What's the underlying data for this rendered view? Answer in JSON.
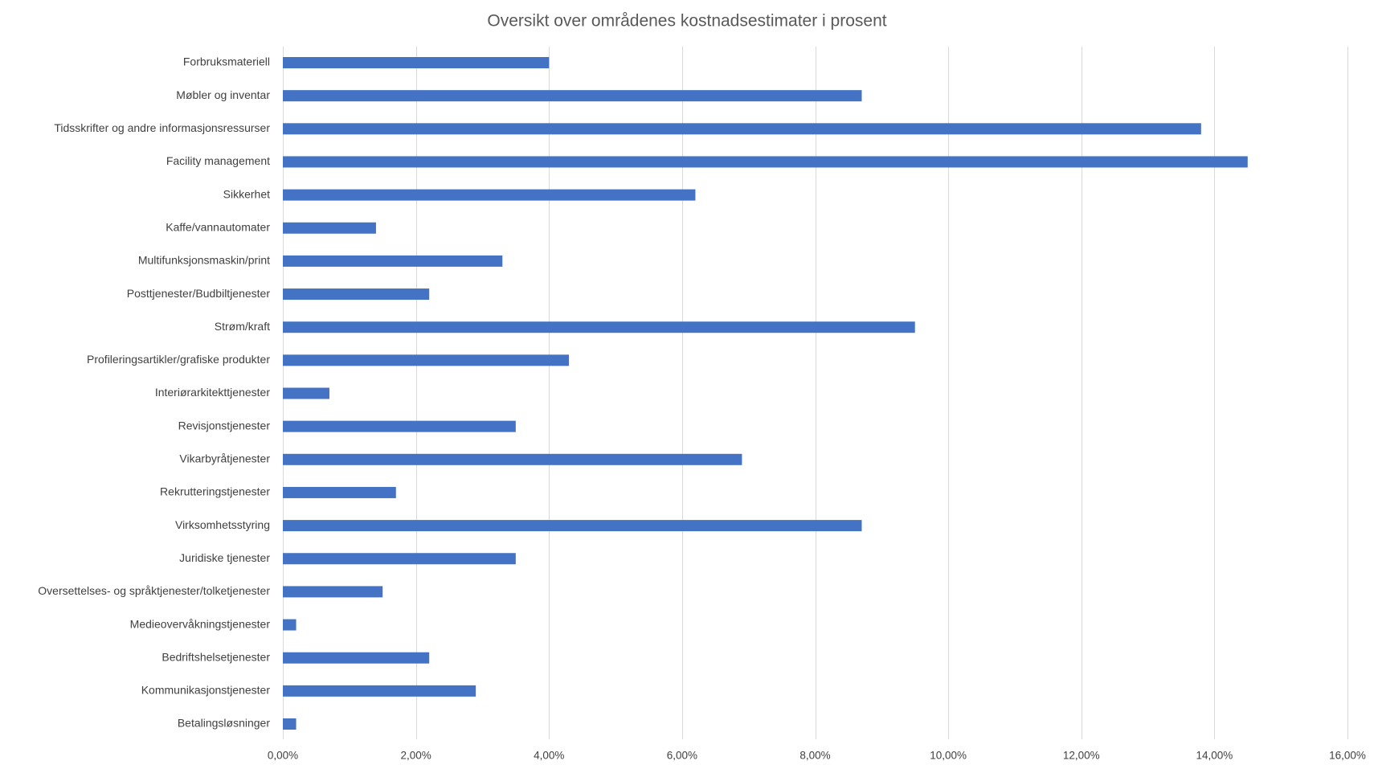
{
  "chart_data": {
    "type": "bar",
    "orientation": "horizontal",
    "title": "Oversikt over områdenes kostnadsestimater i prosent",
    "xlabel": "",
    "ylabel": "",
    "xlim": [
      0,
      16
    ],
    "x_ticks": [
      0,
      2,
      4,
      6,
      8,
      10,
      12,
      14,
      16
    ],
    "x_tick_labels": [
      "0,00%",
      "2,00%",
      "4,00%",
      "6,00%",
      "8,00%",
      "10,00%",
      "12,00%",
      "14,00%",
      "16,00%"
    ],
    "grid": true,
    "legend": "none",
    "bar_color": "#4472C4",
    "categories": [
      "Forbruksmateriell",
      "Møbler og inventar",
      "Tidsskrifter og andre informasjonsressurser",
      "Facility management",
      "Sikkerhet",
      "Kaffe/vannautomater",
      "Multifunksjonsmaskin/print",
      "Posttjenester/Budbiltjenester",
      "Strøm/kraft",
      "Profileringsartikler/grafiske produkter",
      "Interiørarkitekttjenester",
      "Revisjonstjenester",
      "Vikarbyråtjenester",
      "Rekrutteringstjenester",
      "Virksomhetsstyring",
      "Juridiske tjenester",
      "Oversettelses- og språktjenester/tolketjenester",
      "Medieovervåkningstjenester",
      "Bedriftshelsetjenester",
      "Kommunikasjonstjenester",
      "Betalingsløsninger"
    ],
    "values": [
      4.0,
      8.7,
      13.8,
      14.5,
      6.2,
      1.4,
      3.3,
      2.2,
      9.5,
      4.3,
      0.7,
      3.5,
      6.9,
      1.7,
      8.7,
      3.5,
      1.5,
      0.2,
      2.2,
      2.9,
      0.2
    ]
  }
}
